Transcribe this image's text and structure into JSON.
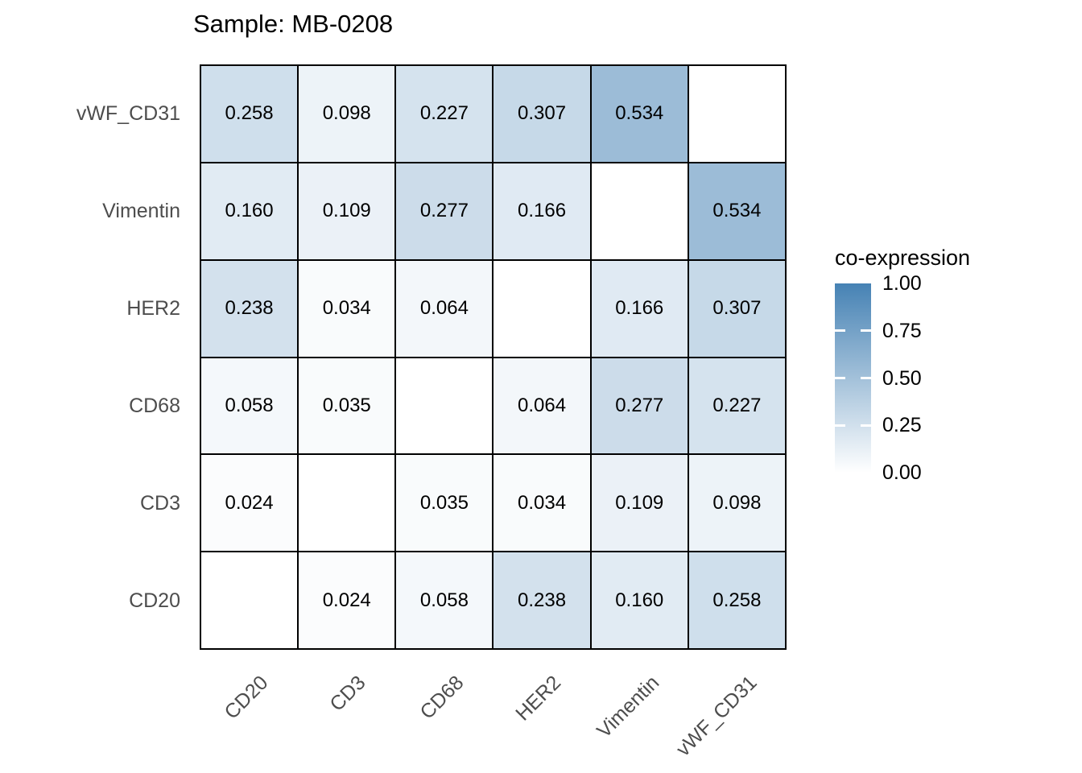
{
  "title": "Sample: MB-0208",
  "chart_data": {
    "type": "heatmap",
    "title": "Sample: MB-0208",
    "x_categories": [
      "CD20",
      "CD3",
      "CD68",
      "HER2",
      "Vimentin",
      "vWF_CD31"
    ],
    "y_categories_top_to_bottom": [
      "vWF_CD31",
      "Vimentin",
      "HER2",
      "CD68",
      "CD3",
      "CD20"
    ],
    "rows": [
      {
        "label": "vWF_CD31",
        "values": [
          0.258,
          0.098,
          0.227,
          0.307,
          0.534,
          null
        ]
      },
      {
        "label": "Vimentin",
        "values": [
          0.16,
          0.109,
          0.277,
          0.166,
          null,
          0.534
        ]
      },
      {
        "label": "HER2",
        "values": [
          0.238,
          0.034,
          0.064,
          null,
          0.166,
          0.307
        ]
      },
      {
        "label": "CD68",
        "values": [
          0.058,
          0.035,
          null,
          0.064,
          0.277,
          0.227
        ]
      },
      {
        "label": "CD3",
        "values": [
          0.024,
          null,
          0.035,
          0.034,
          0.109,
          0.098
        ]
      },
      {
        "label": "CD20",
        "values": [
          null,
          0.024,
          0.058,
          0.238,
          0.16,
          0.258
        ]
      }
    ],
    "value_decimals": 3,
    "legend": {
      "title": "co-expression",
      "tick_labels": [
        "1.00",
        "0.75",
        "0.50",
        "0.25",
        "0.00"
      ],
      "min": 0,
      "max": 1,
      "low_color": "#FFFFFF",
      "high_color": "#4682B4",
      "position": "right"
    },
    "layout": {
      "grid_on": false,
      "cell_border_color": "#000000",
      "axis_label_color": "#4D4D4D",
      "value_text_color": "#000000",
      "background_color": "#FFFFFF",
      "x_label_angle_deg": 45
    }
  }
}
